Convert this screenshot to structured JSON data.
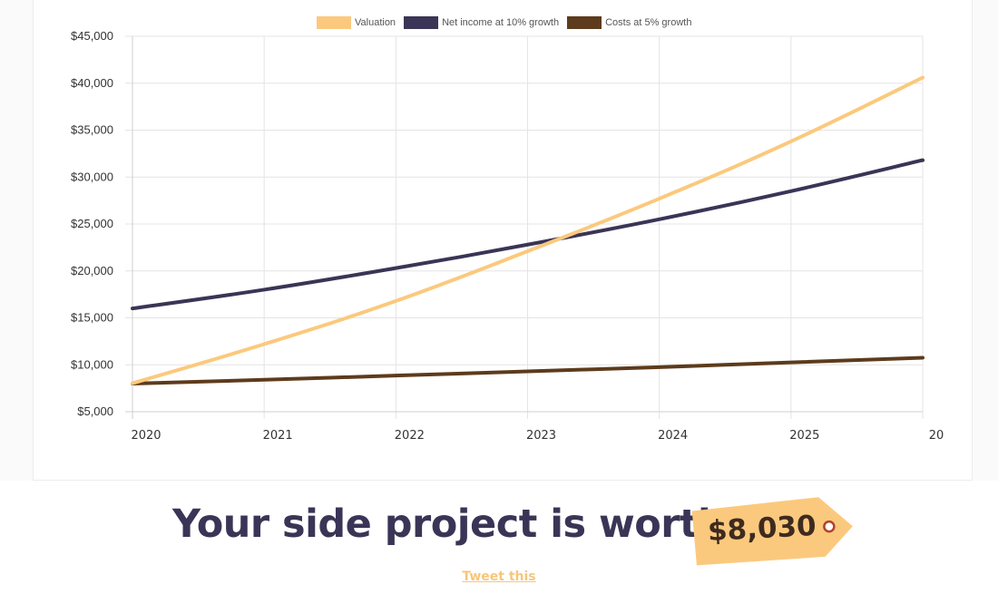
{
  "legend": {
    "items": [
      {
        "label": "Valuation",
        "color": "#fbc97d"
      },
      {
        "label": "Net income at 10% growth",
        "color": "#3a3556"
      },
      {
        "label": "Costs at 5% growth",
        "color": "#5d3b1c"
      }
    ]
  },
  "chart_data": {
    "type": "line",
    "x": [
      "2020",
      "2021",
      "2022",
      "2023",
      "2024",
      "2025",
      "20"
    ],
    "ylim": [
      5000,
      45000
    ],
    "yticks": [
      "$5,000",
      "$10,000",
      "$15,000",
      "$20,000",
      "$25,000",
      "$30,000",
      "$35,000",
      "$40,000",
      "$45,000"
    ],
    "grid": true,
    "legend_position": "top-center",
    "series": [
      {
        "name": "Valuation",
        "color": "#fbc97d",
        "values": [
          8030,
          12200,
          16800,
          22100,
          27700,
          33800,
          40600
        ]
      },
      {
        "name": "Net income at 10% growth",
        "color": "#3a3556",
        "values": [
          16000,
          18000,
          20300,
          22800,
          25500,
          28500,
          31800
        ]
      },
      {
        "name": "Costs at 5% growth",
        "color": "#5d3b1c",
        "values": [
          8000,
          8400,
          8850,
          9300,
          9750,
          10250,
          10750
        ]
      }
    ]
  },
  "headline": {
    "text": "Your side project is worth",
    "price": "$8,030"
  },
  "tweet": {
    "label": "Tweet this"
  },
  "colors": {
    "headline": "#3a3556",
    "tag": "#fbc97d",
    "tag_text": "#3e2b1f",
    "tag_hole": "#b5402a",
    "link": "#f7c67a"
  }
}
